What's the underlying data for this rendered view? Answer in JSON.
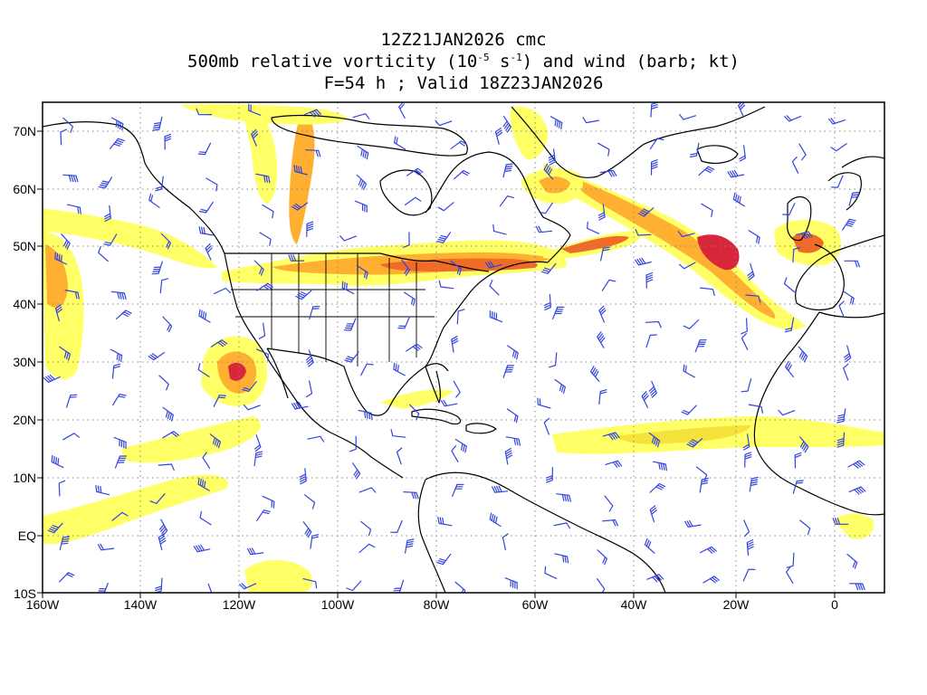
{
  "title": {
    "line1": "12Z21JAN2026 cmc",
    "line2_a": "500mb relative vorticity (10",
    "line2_exp1": "-5",
    "line2_b": " s",
    "line2_exp2": "-1",
    "line2_c": ") and wind (barb; kt)",
    "line3": "F=54 h ; Valid 18Z23JAN2026"
  },
  "axes": {
    "lon_labels": [
      "160W",
      "140W",
      "120W",
      "100W",
      "80W",
      "60W",
      "40W",
      "20W",
      "0"
    ],
    "lat_labels": [
      "70N",
      "60N",
      "50N",
      "40N",
      "30N",
      "20N",
      "10N",
      "EQ",
      "10S"
    ]
  },
  "colors": {
    "shade_1": "#ffff66",
    "shade_2": "#f5e23c",
    "shade_3": "#ffb030",
    "shade_4": "#f06a28",
    "shade_5": "#d8263a",
    "barb": "#3344dd",
    "coast": "#000000",
    "grid": "#888888"
  }
}
